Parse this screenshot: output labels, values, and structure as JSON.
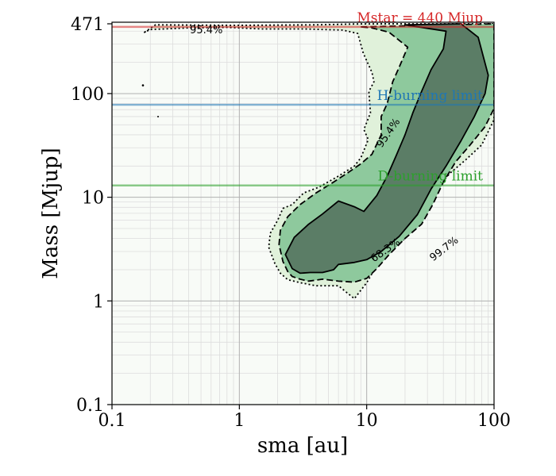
{
  "chart_data": {
    "type": "contour",
    "xlabel": "sma [au]",
    "ylabel": "Mass [Mjup]",
    "xscale": "log",
    "yscale": "log",
    "xlim": [
      0.1,
      100
    ],
    "ylim": [
      0.1,
      471
    ],
    "x_ticks": [
      {
        "value": 0.1,
        "label": "0.1"
      },
      {
        "value": 1,
        "label": "1"
      },
      {
        "value": 10,
        "label": "10"
      },
      {
        "value": 100,
        "label": "100"
      }
    ],
    "y_ticks": [
      {
        "value": 0.1,
        "label": "0.1"
      },
      {
        "value": 1,
        "label": "1"
      },
      {
        "value": 10,
        "label": "10"
      },
      {
        "value": 100,
        "label": "100"
      },
      {
        "value": 471,
        "label": "471"
      }
    ],
    "reference_lines": [
      {
        "name": "mstar",
        "label": "Mstar = 440 Mjup",
        "y": 440,
        "color": "#d62728"
      },
      {
        "name": "h-burning",
        "label": "H-burning limit",
        "y": 78,
        "color": "#1f77b4"
      },
      {
        "name": "d-burning",
        "label": "D-burning limit",
        "y": 13,
        "color": "#2ca02c"
      }
    ],
    "contour_levels": [
      {
        "label": "99.7%",
        "linestyle": "dotted",
        "fill": "#e0f1da",
        "label_at": [
          42,
          3.0
        ],
        "label_angle": -38,
        "outline": [
          [
            0.18,
            390
          ],
          [
            0.22,
            460
          ],
          [
            0.9,
            455
          ],
          [
            4,
            460
          ],
          [
            9,
            470
          ],
          [
            100,
            471
          ],
          [
            100,
            56
          ],
          [
            80,
            32
          ],
          [
            60,
            23
          ],
          [
            45,
            17
          ],
          [
            35,
            12
          ],
          [
            30,
            8
          ],
          [
            25,
            5.5
          ],
          [
            20,
            4.0
          ],
          [
            15,
            3.0
          ],
          [
            12,
            2.2
          ],
          [
            10,
            1.5
          ],
          [
            8,
            1.05
          ],
          [
            6,
            1.4
          ],
          [
            4,
            1.4
          ],
          [
            3,
            1.5
          ],
          [
            2.4,
            1.6
          ],
          [
            2.1,
            1.85
          ],
          [
            1.9,
            2.3
          ],
          [
            1.7,
            3.3
          ],
          [
            1.75,
            4.5
          ],
          [
            2.0,
            6
          ],
          [
            2.2,
            7.8
          ],
          [
            2.6,
            8.5
          ],
          [
            3.2,
            11
          ],
          [
            4.2,
            12.5
          ],
          [
            6,
            16
          ],
          [
            8,
            20
          ],
          [
            9,
            24
          ],
          [
            10.3,
            36
          ],
          [
            9.5,
            45
          ],
          [
            10.7,
            65
          ],
          [
            10.4,
            105
          ],
          [
            11.4,
            130
          ],
          [
            11,
            160
          ],
          [
            9.4,
            245
          ],
          [
            8.5,
            380
          ],
          [
            6.5,
            410
          ],
          [
            3.2,
            420
          ],
          [
            1.5,
            420
          ],
          [
            0.8,
            435
          ],
          [
            0.4,
            430
          ],
          [
            0.2,
            415
          ]
        ]
      },
      {
        "label": "95.4%",
        "linestyle": "dashed",
        "fill": "#8ec99d",
        "label_at": [
          15.5,
          40
        ],
        "label_angle": -55,
        "outline": [
          [
            9,
            440
          ],
          [
            100,
            471
          ],
          [
            100,
            72
          ],
          [
            85,
            48
          ],
          [
            65,
            32
          ],
          [
            50,
            22
          ],
          [
            40,
            14
          ],
          [
            33,
            8.5
          ],
          [
            27,
            5.5
          ],
          [
            20,
            4.0
          ],
          [
            15,
            2.8
          ],
          [
            12,
            2.05
          ],
          [
            10,
            1.65
          ],
          [
            8,
            1.52
          ],
          [
            6,
            1.55
          ],
          [
            4.5,
            1.62
          ],
          [
            3.5,
            1.55
          ],
          [
            3,
            1.62
          ],
          [
            2.6,
            1.72
          ],
          [
            2.4,
            1.92
          ],
          [
            2.2,
            2.4
          ],
          [
            2.05,
            3.5
          ],
          [
            2.1,
            4.8
          ],
          [
            2.4,
            6.5
          ],
          [
            3,
            8.5
          ],
          [
            4,
            11
          ],
          [
            5.5,
            14
          ],
          [
            7,
            17
          ],
          [
            9,
            21
          ],
          [
            11,
            26
          ],
          [
            13,
            40
          ],
          [
            13,
            60
          ],
          [
            14.5,
            80
          ],
          [
            16,
            130
          ],
          [
            18,
            180
          ],
          [
            21,
            280
          ],
          [
            15,
            390
          ],
          [
            11,
            430
          ]
        ]
      },
      {
        "label": "68.3%",
        "linestyle": "solid",
        "fill": "#5b7d66",
        "label_at": [
          14.5,
          2.9
        ],
        "label_angle": -35,
        "outline": [
          [
            20,
            460
          ],
          [
            55,
            471
          ],
          [
            75,
            350
          ],
          [
            90,
            150
          ],
          [
            85,
            100
          ],
          [
            70,
            60
          ],
          [
            55,
            35
          ],
          [
            42,
            20
          ],
          [
            32,
            12
          ],
          [
            25,
            6.8
          ],
          [
            18,
            4.2
          ],
          [
            13,
            3.0
          ],
          [
            10,
            2.5
          ],
          [
            8,
            2.35
          ],
          [
            6,
            2.25
          ],
          [
            5.5,
            2.0
          ],
          [
            4.5,
            1.88
          ],
          [
            3.6,
            1.88
          ],
          [
            3,
            1.85
          ],
          [
            2.6,
            2.05
          ],
          [
            2.3,
            2.8
          ],
          [
            2.7,
            4.1
          ],
          [
            3.5,
            5.5
          ],
          [
            4.5,
            6.9
          ],
          [
            6,
            9.2
          ],
          [
            8,
            8.1
          ],
          [
            9.5,
            7.3
          ],
          [
            12,
            10.4
          ],
          [
            14.5,
            16
          ],
          [
            17,
            25
          ],
          [
            20,
            40
          ],
          [
            23,
            65
          ],
          [
            27,
            105
          ],
          [
            32,
            170
          ],
          [
            40,
            270
          ],
          [
            42,
            400
          ]
        ]
      }
    ],
    "extra_label": {
      "label": "95.4%",
      "at": [
        0.55,
        410
      ]
    }
  }
}
